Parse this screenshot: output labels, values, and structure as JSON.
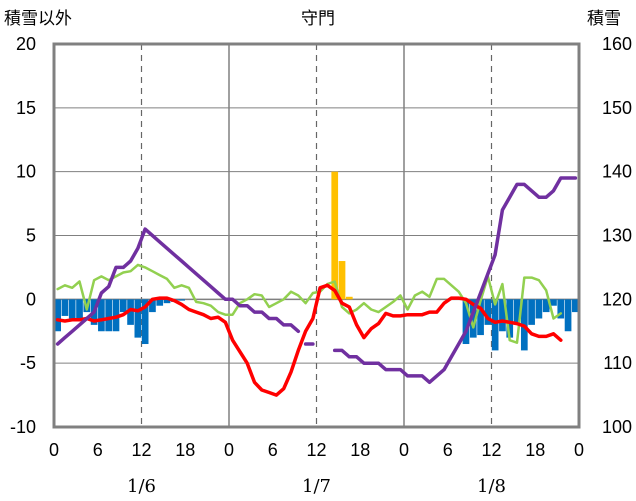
{
  "chart_data": {
    "type": "bar+line",
    "title": "守門",
    "left_axis": {
      "label": "積雪以外",
      "ylim": [
        -10,
        20
      ],
      "ticks": [
        "-10",
        "-5",
        "0",
        "5",
        "10",
        "15",
        "20"
      ]
    },
    "right_axis": {
      "label": "積雪",
      "ylim": [
        100,
        160
      ],
      "ticks": [
        "100",
        "110",
        "120",
        "130",
        "140",
        "150",
        "160"
      ]
    },
    "xlim": [
      0,
      72
    ],
    "x_tick_values": [
      0,
      6,
      12,
      18,
      24,
      30,
      36,
      42,
      48,
      54,
      60,
      66,
      72
    ],
    "x_tick_labels": [
      "0",
      "6",
      "12",
      "18",
      "0",
      "6",
      "12",
      "18",
      "0",
      "6",
      "12",
      "18",
      "0"
    ],
    "date_labels": [
      {
        "x": 12,
        "text": "1/6"
      },
      {
        "x": 36,
        "text": "1/7"
      },
      {
        "x": 60,
        "text": "1/8"
      }
    ],
    "day_boundaries": [
      24,
      48
    ],
    "noon_lines": [
      12,
      36,
      60
    ],
    "colors": {
      "snow_depth": "#7030a0",
      "temperature": "#ff0000",
      "green_line": "#92d050",
      "blue_bars": "#0070c0",
      "orange_bars": "#ffc000",
      "frame": "#808080"
    },
    "series": [
      {
        "axis": "left",
        "type": "bar",
        "color": "#0070c0",
        "values": [
          [
            0,
            -2.5
          ],
          [
            1,
            -1.3
          ],
          [
            2,
            -1.5
          ],
          [
            3,
            -1.5
          ],
          [
            4,
            -1
          ],
          [
            5,
            -2
          ],
          [
            6,
            -2.5
          ],
          [
            7,
            -2.5
          ],
          [
            8,
            -2.5
          ],
          [
            9,
            -1
          ],
          [
            10,
            -2
          ],
          [
            11,
            -3
          ],
          [
            12,
            -3.5
          ],
          [
            13,
            -1
          ],
          [
            14,
            -0.5
          ],
          [
            15,
            -0.3
          ],
          [
            16,
            -0.2
          ],
          [
            17,
            -0.1
          ],
          [
            56,
            -3.5
          ],
          [
            57,
            -3
          ],
          [
            58,
            -2.8
          ],
          [
            59,
            -2
          ],
          [
            60,
            -4
          ],
          [
            61,
            -2.5
          ],
          [
            62,
            -3
          ],
          [
            63,
            -2
          ],
          [
            64,
            -4
          ],
          [
            65,
            -2
          ],
          [
            66,
            -1.5
          ],
          [
            67,
            -1
          ],
          [
            68,
            -0.5
          ],
          [
            69,
            -1.5
          ],
          [
            70,
            -2.5
          ],
          [
            71,
            -1
          ]
        ]
      },
      {
        "axis": "left",
        "type": "bar",
        "color": "#ffc000",
        "values": [
          [
            38,
            10
          ],
          [
            39,
            3
          ],
          [
            40,
            0.2
          ]
        ]
      },
      {
        "axis": "left",
        "type": "line",
        "color": "#92d050",
        "values": [
          [
            0,
            0.8
          ],
          [
            1,
            1.1
          ],
          [
            2,
            0.9
          ],
          [
            3,
            1.4
          ],
          [
            4,
            -0.8
          ],
          [
            5,
            1.5
          ],
          [
            6,
            1.8
          ],
          [
            7,
            1.5
          ],
          [
            8,
            1.8
          ],
          [
            9,
            2.1
          ],
          [
            10,
            2.2
          ],
          [
            11,
            2.7
          ],
          [
            12,
            2.5
          ],
          [
            13,
            2.2
          ],
          [
            14,
            1.9
          ],
          [
            15,
            1.6
          ],
          [
            16,
            0.9
          ],
          [
            17,
            1.1
          ],
          [
            18,
            0.9
          ],
          [
            19,
            -0.2
          ],
          [
            20,
            -0.3
          ],
          [
            21,
            -0.5
          ],
          [
            22,
            -1
          ],
          [
            23,
            -1.2
          ],
          [
            24,
            -1.2
          ],
          [
            25,
            -0.3
          ],
          [
            26,
            0
          ],
          [
            27,
            0.4
          ],
          [
            28,
            0.3
          ],
          [
            29,
            -0.6
          ],
          [
            30,
            -0.3
          ],
          [
            31,
            0
          ],
          [
            32,
            0.6
          ],
          [
            33,
            0.3
          ],
          [
            34,
            -0.3
          ],
          [
            35,
            0.5
          ],
          [
            36,
            0.6
          ],
          [
            37,
            1.2
          ],
          [
            38,
            1.4
          ],
          [
            39,
            -0.6
          ],
          [
            40,
            -1.1
          ],
          [
            41,
            -0.8
          ],
          [
            42,
            -0.3
          ],
          [
            43,
            -0.8
          ],
          [
            44,
            -1
          ],
          [
            45,
            -0.6
          ],
          [
            46,
            -0.2
          ],
          [
            47,
            0.3
          ],
          [
            48,
            -0.8
          ],
          [
            49,
            0.3
          ],
          [
            50,
            0.6
          ],
          [
            51,
            0.2
          ],
          [
            52,
            1.6
          ],
          [
            53,
            1.6
          ],
          [
            54,
            1.1
          ],
          [
            55,
            0.6
          ],
          [
            56,
            -0.3
          ],
          [
            57,
            -2.2
          ],
          [
            58,
            -0.1
          ],
          [
            59,
            1.8
          ],
          [
            60,
            -0.4
          ],
          [
            61,
            1.2
          ],
          [
            62,
            -3.2
          ],
          [
            63,
            -3.4
          ],
          [
            64,
            1.7
          ],
          [
            65,
            1.7
          ],
          [
            66,
            1.5
          ],
          [
            67,
            0.7
          ],
          [
            68,
            -1.5
          ],
          [
            69,
            -1.1
          ]
        ]
      },
      {
        "axis": "left",
        "type": "line",
        "color": "#ff0000",
        "values": [
          [
            0,
            -1.6
          ],
          [
            1,
            -1.7
          ],
          [
            2,
            -1.6
          ],
          [
            3,
            -1.6
          ],
          [
            4,
            -1.5
          ],
          [
            5,
            -1.7
          ],
          [
            6,
            -1.6
          ],
          [
            7,
            -1.5
          ],
          [
            8,
            -1.4
          ],
          [
            9,
            -1.2
          ],
          [
            10,
            -0.8
          ],
          [
            11,
            -0.9
          ],
          [
            12,
            -0.6
          ],
          [
            13,
            0
          ],
          [
            14,
            0.1
          ],
          [
            15,
            0.1
          ],
          [
            16,
            -0.1
          ],
          [
            17,
            -0.4
          ],
          [
            18,
            -0.8
          ],
          [
            19,
            -1
          ],
          [
            20,
            -1.2
          ],
          [
            21,
            -1.5
          ],
          [
            22,
            -1.4
          ],
          [
            23,
            -1.8
          ],
          [
            24,
            -3.2
          ],
          [
            25,
            -4.1
          ],
          [
            26,
            -5
          ],
          [
            27,
            -6.5
          ],
          [
            28,
            -7.1
          ],
          [
            29,
            -7.3
          ],
          [
            30,
            -7.5
          ],
          [
            31,
            -7
          ],
          [
            32,
            -5.7
          ],
          [
            33,
            -4
          ],
          [
            34,
            -2.5
          ],
          [
            35,
            -1.5
          ],
          [
            36,
            0.9
          ],
          [
            37,
            1.1
          ],
          [
            38,
            0.7
          ],
          [
            39,
            -0.3
          ],
          [
            40,
            -0.6
          ],
          [
            41,
            -2
          ],
          [
            42,
            -3
          ],
          [
            43,
            -2.3
          ],
          [
            44,
            -1.9
          ],
          [
            45,
            -1.1
          ],
          [
            46,
            -1.3
          ],
          [
            47,
            -1.3
          ],
          [
            48,
            -1.2
          ],
          [
            49,
            -1.2
          ],
          [
            50,
            -1.2
          ],
          [
            51,
            -1
          ],
          [
            52,
            -1
          ],
          [
            53,
            -0.3
          ],
          [
            54,
            0.1
          ],
          [
            55,
            0.1
          ],
          [
            56,
            0
          ],
          [
            57,
            -0.4
          ],
          [
            58,
            -0.7
          ],
          [
            59,
            -1.5
          ],
          [
            60,
            -1.8
          ],
          [
            61,
            -1.7
          ],
          [
            62,
            -1.8
          ],
          [
            63,
            -1.9
          ],
          [
            64,
            -2.1
          ],
          [
            65,
            -2.7
          ],
          [
            66,
            -2.9
          ],
          [
            67,
            -2.9
          ],
          [
            68,
            -2.7
          ],
          [
            69,
            -3.2
          ]
        ]
      },
      {
        "axis": "right",
        "type": "line",
        "color": "#7030a0",
        "segments": [
          [
            [
              0,
              113
            ],
            [
              1,
              114
            ],
            [
              2,
              115
            ],
            [
              3,
              116
            ],
            [
              4,
              117
            ],
            [
              5,
              118
            ],
            [
              6,
              121
            ],
            [
              7,
              122
            ],
            [
              8,
              125
            ],
            [
              9,
              125
            ],
            [
              10,
              126
            ],
            [
              11,
              128
            ],
            [
              12,
              131
            ],
            [
              13,
              130
            ],
            [
              14,
              129
            ],
            [
              15,
              128
            ],
            [
              16,
              127
            ],
            [
              17,
              126
            ],
            [
              18,
              125
            ],
            [
              19,
              124
            ],
            [
              20,
              123
            ],
            [
              21,
              122
            ],
            [
              22,
              121
            ],
            [
              23,
              120
            ],
            [
              24,
              120
            ],
            [
              25,
              119
            ],
            [
              26,
              119
            ],
            [
              27,
              118
            ],
            [
              28,
              118
            ],
            [
              29,
              117
            ],
            [
              30,
              117
            ],
            [
              31,
              116
            ],
            [
              32,
              116
            ],
            [
              33,
              115
            ]
          ],
          [
            [
              34,
              113
            ],
            [
              35,
              113
            ]
          ],
          [
            [
              38,
              112
            ],
            [
              39,
              112
            ],
            [
              40,
              111
            ],
            [
              41,
              111
            ],
            [
              42,
              110
            ],
            [
              43,
              110
            ],
            [
              44,
              110
            ],
            [
              45,
              109
            ],
            [
              46,
              109
            ],
            [
              47,
              109
            ],
            [
              48,
              108
            ],
            [
              49,
              108
            ],
            [
              50,
              108
            ],
            [
              51,
              107
            ],
            [
              52,
              108
            ],
            [
              53,
              109
            ],
            [
              54,
              111
            ],
            [
              55,
              113
            ],
            [
              56,
              115
            ],
            [
              57,
              118
            ],
            [
              58,
              121
            ],
            [
              59,
              124
            ],
            [
              60,
              127
            ],
            [
              61,
              134
            ],
            [
              62,
              136
            ],
            [
              63,
              138
            ],
            [
              64,
              138
            ],
            [
              65,
              137
            ],
            [
              66,
              136
            ],
            [
              67,
              136
            ],
            [
              68,
              137
            ],
            [
              69,
              139
            ],
            [
              70,
              139
            ],
            [
              71,
              139
            ]
          ]
        ]
      }
    ]
  }
}
